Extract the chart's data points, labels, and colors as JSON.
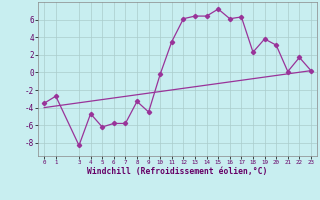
{
  "xlabel": "Windchill (Refroidissement éolien,°C)",
  "line1_x": [
    0,
    1,
    3,
    4,
    5,
    6,
    7,
    8,
    9,
    10,
    11,
    12,
    13,
    14,
    15,
    16,
    17,
    18,
    19,
    20,
    21,
    22,
    23
  ],
  "line1_y": [
    -3.5,
    -2.7,
    -8.3,
    -4.7,
    -6.2,
    -5.8,
    -5.8,
    -3.3,
    -4.5,
    -0.2,
    3.5,
    6.1,
    6.4,
    6.4,
    7.2,
    6.1,
    6.3,
    2.3,
    3.8,
    3.1,
    0.1,
    1.7,
    0.2
  ],
  "line2_x": [
    0,
    23
  ],
  "line2_y": [
    -4.0,
    0.2
  ],
  "line_color": "#993399",
  "bg_color": "#c8eef0",
  "grid_color": "#aacccc",
  "xlim": [
    -0.5,
    23.5
  ],
  "ylim": [
    -9.5,
    8.0
  ],
  "yticks": [
    -8,
    -6,
    -4,
    -2,
    0,
    2,
    4,
    6
  ],
  "xticks": [
    0,
    1,
    3,
    4,
    5,
    6,
    7,
    8,
    9,
    10,
    11,
    12,
    13,
    14,
    15,
    16,
    17,
    18,
    19,
    20,
    21,
    22,
    23
  ],
  "marker": "D",
  "markersize": 2.2,
  "linewidth": 0.9
}
